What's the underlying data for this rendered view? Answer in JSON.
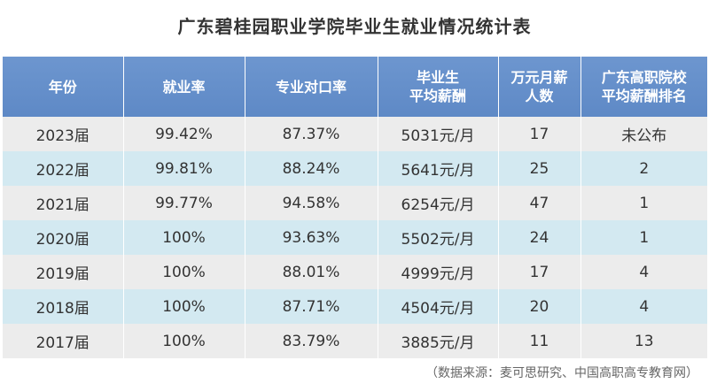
{
  "title": "广东碧桂园职业学院毕业生就业情况统计表",
  "headers": [
    {
      "line1": "年份",
      "line2": ""
    },
    {
      "line1": "就业率",
      "line2": ""
    },
    {
      "line1": "专业对口率",
      "line2": ""
    },
    {
      "line1": "毕业生",
      "line2": "平均薪酬"
    },
    {
      "line1": "万元月薪",
      "line2": "人数"
    },
    {
      "line1": "广东高职院校",
      "line2": "平均薪酬排名"
    }
  ],
  "rows": [
    [
      "2023届",
      "99.42%",
      "87.37%",
      "5031元/月",
      "17",
      "未公布"
    ],
    [
      "2022届",
      "99.81%",
      "88.24%",
      "5641元/月",
      "25",
      "2"
    ],
    [
      "2021届",
      "99.77%",
      "94.58%",
      "6254元/月",
      "47",
      "1"
    ],
    [
      "2020届",
      "100%",
      "93.63%",
      "5502元/月",
      "24",
      "1"
    ],
    [
      "2019届",
      "100%",
      "88.01%",
      "4999元/月",
      "17",
      "4"
    ],
    [
      "2018届",
      "100%",
      "87.71%",
      "4504元/月",
      "20",
      "4"
    ],
    [
      "2017届",
      "100%",
      "83.79%",
      "3885元/月",
      "11",
      "13"
    ]
  ],
  "source": "（数据来源：麦可思研究、中国高职高专教育网）",
  "colors": {
    "header_bg": "#6590ca",
    "row_odd": "#ececec",
    "row_even": "#d3e9f1"
  }
}
